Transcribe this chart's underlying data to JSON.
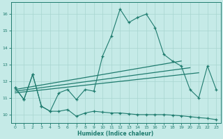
{
  "xlabel": "Humidex (Indice chaleur)",
  "xlim": [
    -0.5,
    23.5
  ],
  "ylim": [
    9.5,
    16.7
  ],
  "yticks": [
    10,
    11,
    12,
    13,
    14,
    15,
    16
  ],
  "xticks": [
    0,
    1,
    2,
    3,
    4,
    5,
    6,
    7,
    8,
    9,
    10,
    11,
    12,
    13,
    14,
    15,
    16,
    17,
    18,
    19,
    20,
    21,
    22,
    23
  ],
  "bg_color": "#c5eae7",
  "grid_color": "#a8d5d0",
  "line_color": "#1e7b6e",
  "curve1_x": [
    0,
    1,
    2,
    3,
    4,
    5,
    6,
    7,
    8,
    9,
    10,
    11,
    12,
    13,
    14,
    15,
    16,
    17,
    18,
    19,
    20,
    21,
    22,
    23
  ],
  "curve1_y": [
    11.6,
    10.9,
    12.4,
    10.5,
    10.2,
    11.3,
    11.5,
    10.9,
    11.5,
    11.4,
    13.5,
    14.7,
    16.3,
    15.5,
    15.8,
    16.0,
    15.2,
    13.6,
    13.2,
    12.9,
    11.5,
    11.0,
    12.9,
    11.5
  ],
  "curve2_x": [
    0,
    1,
    2,
    3,
    4,
    5,
    6,
    7,
    8,
    9,
    10,
    11,
    12,
    13,
    14,
    15,
    16,
    17,
    18,
    19,
    20,
    21,
    22,
    23
  ],
  "curve2_y": [
    11.6,
    10.9,
    12.4,
    10.5,
    10.2,
    10.2,
    10.3,
    9.9,
    10.1,
    10.2,
    10.15,
    10.1,
    10.1,
    10.05,
    10.0,
    10.0,
    10.0,
    10.0,
    9.97,
    9.93,
    9.88,
    9.82,
    9.78,
    9.7
  ],
  "trend1_x": [
    0,
    19
  ],
  "trend1_y": [
    11.5,
    13.2
  ],
  "trend2_x": [
    0,
    20
  ],
  "trend2_y": [
    11.4,
    12.8
  ],
  "trend3_x": [
    0,
    21
  ],
  "trend3_y": [
    11.3,
    12.5
  ]
}
